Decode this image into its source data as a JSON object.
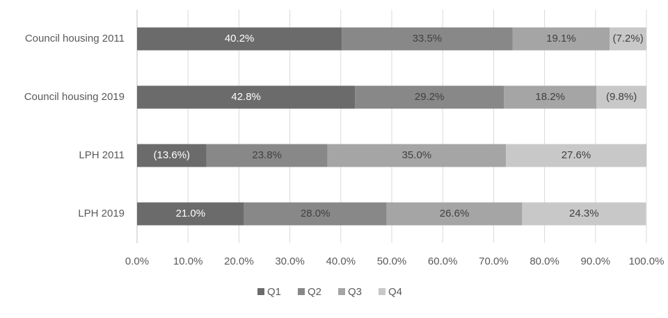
{
  "chart_data": {
    "type": "stacked-bar-horizontal",
    "categories": [
      "Council housing 2011",
      "Council housing 2019",
      "LPH 2011",
      "LPH 2019"
    ],
    "series": [
      {
        "name": "Q1",
        "color": "#6b6b6b",
        "values": [
          40.2,
          42.8,
          13.6,
          21.0
        ],
        "value_labels": [
          "40.2%",
          "42.8%",
          "(13.6%)",
          "21.0%"
        ]
      },
      {
        "name": "Q2",
        "color": "#888888",
        "values": [
          33.5,
          29.2,
          23.8,
          28.0
        ],
        "value_labels": [
          "33.5%",
          "29.2%",
          "23.8%",
          "28.0%"
        ]
      },
      {
        "name": "Q3",
        "color": "#a5a5a5",
        "values": [
          19.1,
          18.2,
          35.0,
          26.6
        ],
        "value_labels": [
          "19.1%",
          "18.2%",
          "35.0%",
          "26.6%"
        ]
      },
      {
        "name": "Q4",
        "color": "#c8c8c8",
        "values": [
          7.2,
          9.8,
          27.6,
          24.3
        ],
        "value_labels": [
          "(7.2%)",
          "(9.8%)",
          "27.6%",
          "24.3%"
        ]
      }
    ],
    "xlim": [
      0,
      100
    ],
    "xticks": [
      {
        "value": 0,
        "label": "0.0%"
      },
      {
        "value": 10,
        "label": "10.0%"
      },
      {
        "value": 20,
        "label": "20.0%"
      },
      {
        "value": 30,
        "label": "30.0%"
      },
      {
        "value": 40,
        "label": "40.0%"
      },
      {
        "value": 50,
        "label": "50.0%"
      },
      {
        "value": 60,
        "label": "60.0%"
      },
      {
        "value": 70,
        "label": "70.0%"
      },
      {
        "value": 80,
        "label": "80.0%"
      },
      {
        "value": 90,
        "label": "90.0%"
      },
      {
        "value": 100,
        "label": "100.0%"
      }
    ],
    "grid": true,
    "legend": "bottom"
  }
}
